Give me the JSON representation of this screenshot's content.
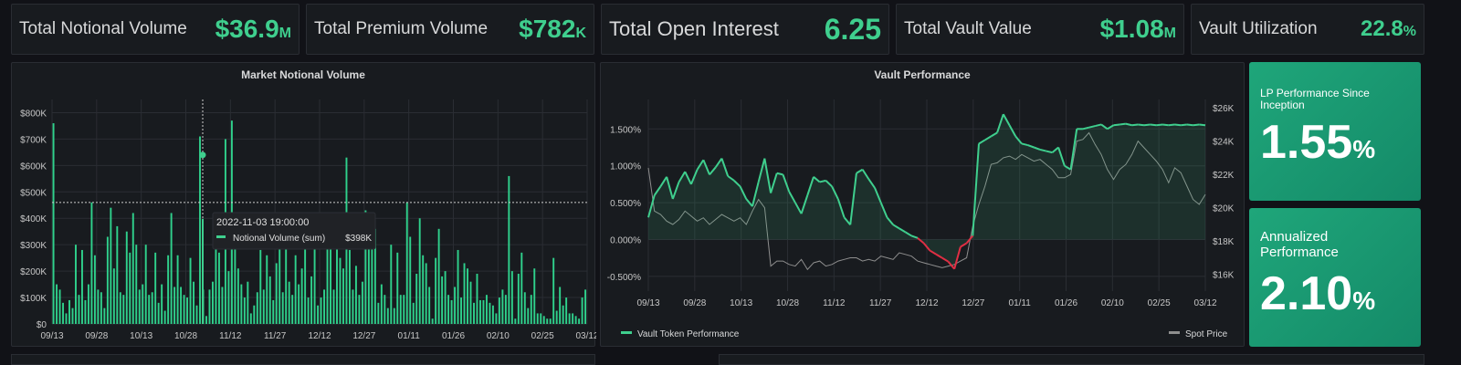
{
  "stats": [
    {
      "label": "Total Notional Volume",
      "value": "$36.9",
      "unit": "M"
    },
    {
      "label": "Total Premium Volume",
      "value": "$782",
      "unit": "K"
    },
    {
      "label": "Total Open Interest",
      "value": "6.25",
      "unit": ""
    },
    {
      "label": "Total Vault Value",
      "value": "$1.08",
      "unit": "M"
    },
    {
      "label": "Vault Utilization",
      "value": "22.8",
      "unit": "%"
    }
  ],
  "lp_cards": [
    {
      "title": "LP Performance Since Inception",
      "value": "1.55",
      "unit": "%"
    },
    {
      "title": "Annualized Performance",
      "value": "2.10",
      "unit": "%"
    }
  ],
  "colors": {
    "accent": "#3fcf8e",
    "negative": "#e02f44",
    "spot": "#8e8e8e",
    "panel": "#181b1f",
    "background": "#111217"
  },
  "chart_data": [
    {
      "type": "bar",
      "title": "Market Notional Volume",
      "x_ticks": [
        "09/13",
        "09/28",
        "10/13",
        "10/28",
        "11/12",
        "11/27",
        "12/12",
        "12/27",
        "01/11",
        "01/26",
        "02/10",
        "02/25",
        "03/12"
      ],
      "y_ticks": [
        "$0",
        "$100K",
        "$200K",
        "$300K",
        "$400K",
        "$500K",
        "$600K",
        "$700K",
        "$800K"
      ],
      "ylim": [
        0,
        850000
      ],
      "grid": true,
      "series": [
        {
          "name": "Notional Volume (sum)",
          "values": [
            760000,
            150000,
            130000,
            80000,
            40000,
            90000,
            60000,
            300000,
            110000,
            280000,
            90000,
            150000,
            460000,
            260000,
            130000,
            120000,
            60000,
            330000,
            440000,
            210000,
            370000,
            120000,
            110000,
            350000,
            270000,
            420000,
            300000,
            130000,
            150000,
            300000,
            110000,
            120000,
            270000,
            80000,
            150000,
            50000,
            260000,
            420000,
            140000,
            260000,
            140000,
            110000,
            100000,
            250000,
            160000,
            70000,
            710000,
            130000,
            30000,
            130000,
            160000,
            400000,
            270000,
            140000,
            700000,
            200000,
            770000,
            310000,
            210000,
            150000,
            100000,
            160000,
            40000,
            70000,
            120000,
            280000,
            130000,
            260000,
            180000,
            90000,
            230000,
            300000,
            120000,
            310000,
            160000,
            110000,
            260000,
            150000,
            210000,
            300000,
            100000,
            180000,
            370000,
            70000,
            100000,
            130000,
            370000,
            410000,
            130000,
            340000,
            250000,
            210000,
            630000,
            280000,
            130000,
            220000,
            110000,
            160000,
            430000,
            380000,
            290000,
            360000,
            80000,
            150000,
            110000,
            60000,
            300000,
            60000,
            270000,
            110000,
            110000,
            460000,
            330000,
            80000,
            190000,
            400000,
            260000,
            230000,
            140000,
            20000,
            250000,
            360000,
            180000,
            200000,
            110000,
            90000,
            140000,
            280000,
            100000,
            230000,
            210000,
            160000,
            80000,
            190000,
            90000,
            90000,
            110000,
            80000,
            70000,
            40000,
            100000,
            130000,
            110000,
            560000,
            200000,
            20000,
            190000,
            270000,
            120000,
            60000,
            110000,
            210000,
            40000,
            40000,
            30000,
            20000,
            20000,
            250000,
            50000,
            140000,
            70000,
            100000,
            40000,
            40000,
            30000,
            20000,
            100000,
            130000
          ]
        }
      ],
      "tooltip": {
        "time": "2022-11-03 19:00:00",
        "series": "Notional Volume (sum)",
        "value": "$398K"
      }
    },
    {
      "type": "line",
      "title": "Vault Performance",
      "x_ticks": [
        "09/13",
        "09/28",
        "10/13",
        "10/28",
        "11/12",
        "11/27",
        "12/12",
        "12/27",
        "01/11",
        "01/26",
        "02/10",
        "02/25",
        "03/12"
      ],
      "y_left_ticks": [
        "-0.500%",
        "0.000%",
        "0.500%",
        "1.000%",
        "1.500%"
      ],
      "y_left_range": [
        -0.7,
        1.9
      ],
      "y_right_ticks": [
        "$16K",
        "$18K",
        "$20K",
        "$22K",
        "$24K",
        "$26K"
      ],
      "y_right_range": [
        15000,
        26500
      ],
      "legend": [
        "Vault Token Performance",
        "Spot Price"
      ],
      "legend_position": "bottom",
      "grid": true,
      "series": [
        {
          "name": "Vault Token Performance",
          "x_days": [
            0,
            2,
            4,
            6,
            8,
            10,
            12,
            14,
            16,
            18,
            20,
            22,
            24,
            26,
            28,
            30,
            32,
            34,
            36,
            38,
            40,
            42,
            44,
            46,
            48,
            50,
            52,
            54,
            56,
            58,
            60,
            62,
            64,
            66,
            68,
            70,
            72,
            74,
            76,
            78,
            80,
            82,
            84,
            86,
            88,
            90,
            92,
            94,
            96,
            98,
            100,
            102,
            104,
            106,
            108,
            110,
            112,
            114,
            116,
            118,
            120,
            122,
            124,
            126,
            128,
            130,
            132,
            134,
            136,
            138,
            140,
            142,
            144,
            146,
            148,
            150,
            152,
            154,
            156,
            158,
            160,
            162,
            164,
            166,
            168,
            170,
            172,
            174,
            176,
            178,
            180,
            182
          ],
          "values": [
            0.3,
            0.6,
            0.72,
            0.85,
            0.55,
            0.78,
            0.92,
            0.75,
            0.95,
            1.08,
            0.88,
            0.98,
            1.1,
            0.86,
            0.8,
            0.72,
            0.55,
            0.45,
            0.78,
            1.1,
            0.63,
            0.9,
            0.88,
            0.65,
            0.5,
            0.35,
            0.6,
            0.85,
            0.78,
            0.8,
            0.72,
            0.55,
            0.3,
            0.2,
            0.9,
            0.95,
            0.82,
            0.7,
            0.5,
            0.3,
            0.2,
            0.15,
            0.1,
            0.05,
            0.02,
            -0.05,
            -0.15,
            -0.2,
            -0.25,
            -0.3,
            -0.4,
            -0.1,
            -0.05,
            0.05,
            1.3,
            1.35,
            1.4,
            1.45,
            1.7,
            1.55,
            1.4,
            1.3,
            1.28,
            1.25,
            1.22,
            1.2,
            1.18,
            1.25,
            1.0,
            0.95,
            1.5,
            1.5,
            1.52,
            1.54,
            1.56,
            1.5,
            1.55,
            1.56,
            1.57,
            1.55,
            1.56,
            1.55,
            1.56,
            1.55,
            1.56,
            1.55,
            1.56,
            1.55,
            1.56,
            1.55,
            1.56,
            1.55
          ]
        },
        {
          "name": "Spot Price",
          "x_days": [
            0,
            2,
            4,
            6,
            8,
            10,
            12,
            14,
            16,
            18,
            20,
            22,
            24,
            26,
            28,
            30,
            32,
            34,
            36,
            38,
            40,
            42,
            44,
            46,
            48,
            50,
            52,
            54,
            56,
            58,
            60,
            62,
            64,
            66,
            68,
            70,
            72,
            74,
            76,
            78,
            80,
            82,
            84,
            86,
            88,
            90,
            92,
            94,
            96,
            98,
            100,
            102,
            104,
            106,
            108,
            110,
            112,
            114,
            116,
            118,
            120,
            122,
            124,
            126,
            128,
            130,
            132,
            134,
            136,
            138,
            140,
            142,
            144,
            146,
            148,
            150,
            152,
            154,
            156,
            158,
            160,
            162,
            164,
            166,
            168,
            170,
            172,
            174,
            176,
            178,
            180,
            182
          ],
          "values": [
            22400,
            19800,
            19600,
            19200,
            19000,
            19300,
            19800,
            19500,
            19200,
            19400,
            19000,
            19300,
            19600,
            19400,
            19200,
            19400,
            19000,
            19800,
            20500,
            20000,
            16500,
            16800,
            16800,
            16600,
            16500,
            16900,
            16300,
            16700,
            16800,
            16500,
            16600,
            16800,
            16900,
            17000,
            17000,
            16800,
            16900,
            16800,
            17100,
            17000,
            16900,
            17300,
            17200,
            17100,
            16800,
            16700,
            16600,
            16500,
            16400,
            16500,
            16600,
            16800,
            17000,
            18900,
            20200,
            21300,
            22600,
            22700,
            23000,
            23100,
            22900,
            23200,
            23000,
            22800,
            22900,
            22600,
            22300,
            21800,
            21800,
            22000,
            24000,
            24100,
            24500,
            23800,
            23200,
            22300,
            21700,
            22300,
            22600,
            23200,
            24000,
            23600,
            23200,
            22800,
            22300,
            21500,
            22400,
            22100,
            21300,
            20500,
            20200,
            20800
          ]
        }
      ],
      "highlight": {
        "negative_color": "#e02f44",
        "positive_color": "#3fcf8e"
      }
    }
  ]
}
